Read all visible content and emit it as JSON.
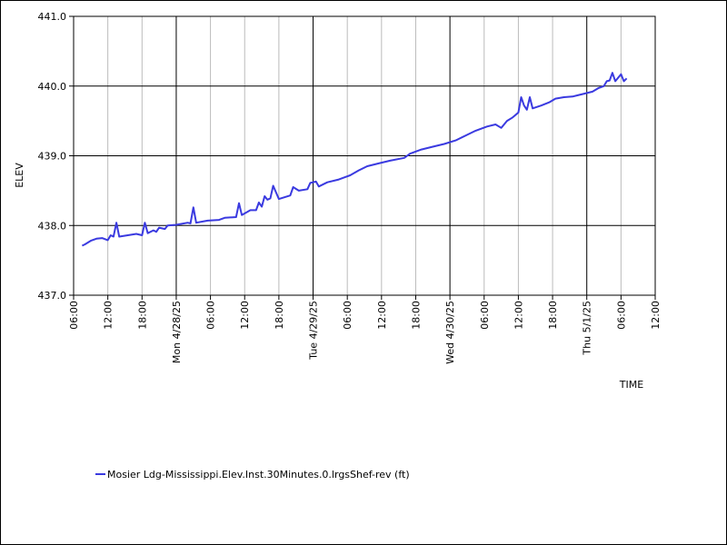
{
  "chart_data": {
    "type": "line",
    "y_label": "ELEV",
    "x_label": "TIME",
    "xlim": [
      "2025-04-27T06:00",
      "2025-05-01T12:00"
    ],
    "ylim": [
      437.0,
      441.0
    ],
    "yticks": [
      {
        "value": 437,
        "label": "437.0"
      },
      {
        "value": 438,
        "label": "438.0"
      },
      {
        "value": 439,
        "label": "439.0"
      },
      {
        "value": 440,
        "label": "440.0"
      },
      {
        "value": 441,
        "label": "441.0"
      }
    ],
    "xticks": [
      {
        "value": "2025-04-27T06:00",
        "label": "06:00"
      },
      {
        "value": "2025-04-27T12:00",
        "label": "12:00"
      },
      {
        "value": "2025-04-27T18:00",
        "label": "18:00"
      },
      {
        "value": "2025-04-28T00:00",
        "label": "Mon 4/28/25"
      },
      {
        "value": "2025-04-28T06:00",
        "label": "06:00"
      },
      {
        "value": "2025-04-28T12:00",
        "label": "12:00"
      },
      {
        "value": "2025-04-28T18:00",
        "label": "18:00"
      },
      {
        "value": "2025-04-29T00:00",
        "label": "Tue 4/29/25"
      },
      {
        "value": "2025-04-29T06:00",
        "label": "06:00"
      },
      {
        "value": "2025-04-29T12:00",
        "label": "12:00"
      },
      {
        "value": "2025-04-29T18:00",
        "label": "18:00"
      },
      {
        "value": "2025-04-30T00:00",
        "label": "Wed 4/30/25"
      },
      {
        "value": "2025-04-30T06:00",
        "label": "06:00"
      },
      {
        "value": "2025-04-30T12:00",
        "label": "12:00"
      },
      {
        "value": "2025-04-30T18:00",
        "label": "18:00"
      },
      {
        "value": "2025-05-01T00:00",
        "label": "Thu 5/1/25"
      },
      {
        "value": "2025-05-01T06:00",
        "label": "06:00"
      },
      {
        "value": "2025-05-01T12:00",
        "label": "12:00"
      }
    ],
    "grid": true,
    "legend": "bottom",
    "x": [
      "2025-04-27T07:30",
      "2025-04-27T08:00",
      "2025-04-27T09:00",
      "2025-04-27T10:00",
      "2025-04-27T11:00",
      "2025-04-27T12:00",
      "2025-04-27T12:30",
      "2025-04-27T13:00",
      "2025-04-27T13:30",
      "2025-04-27T14:00",
      "2025-04-27T15:30",
      "2025-04-27T17:00",
      "2025-04-27T18:00",
      "2025-04-27T18:30",
      "2025-04-27T19:00",
      "2025-04-27T20:00",
      "2025-04-27T20:30",
      "2025-04-27T21:00",
      "2025-04-27T22:00",
      "2025-04-27T22:30",
      "2025-04-28T00:00",
      "2025-04-28T02:00",
      "2025-04-28T02:30",
      "2025-04-28T03:00",
      "2025-04-28T03:30",
      "2025-04-28T05:30",
      "2025-04-28T07:30",
      "2025-04-28T08:30",
      "2025-04-28T10:30",
      "2025-04-28T11:00",
      "2025-04-28T11:30",
      "2025-04-28T13:00",
      "2025-04-28T14:00",
      "2025-04-28T14:30",
      "2025-04-28T15:00",
      "2025-04-28T15:30",
      "2025-04-28T16:00",
      "2025-04-28T16:30",
      "2025-04-28T17:00",
      "2025-04-28T18:00",
      "2025-04-28T20:00",
      "2025-04-28T20:30",
      "2025-04-28T21:30",
      "2025-04-28T23:00",
      "2025-04-28T23:30",
      "2025-04-29T00:30",
      "2025-04-29T01:00",
      "2025-04-29T02:30",
      "2025-04-29T04:30",
      "2025-04-29T06:30",
      "2025-04-29T08:00",
      "2025-04-29T09:30",
      "2025-04-29T11:30",
      "2025-04-29T13:30",
      "2025-04-29T16:00",
      "2025-04-29T17:00",
      "2025-04-29T19:00",
      "2025-04-29T21:00",
      "2025-04-29T23:00",
      "2025-04-30T01:00",
      "2025-04-30T03:00",
      "2025-04-30T04:30",
      "2025-04-30T06:30",
      "2025-04-30T08:00",
      "2025-04-30T09:00",
      "2025-04-30T10:00",
      "2025-04-30T11:00",
      "2025-04-30T12:00",
      "2025-04-30T12:30",
      "2025-04-30T13:00",
      "2025-04-30T13:30",
      "2025-04-30T14:00",
      "2025-04-30T14:30",
      "2025-04-30T16:00",
      "2025-04-30T17:30",
      "2025-04-30T18:30",
      "2025-04-30T20:00",
      "2025-04-30T21:30",
      "2025-04-30T23:00",
      "2025-05-01T01:00",
      "2025-05-01T02:00",
      "2025-05-01T03:00",
      "2025-05-01T03:30",
      "2025-05-01T04:00",
      "2025-05-01T04:30",
      "2025-05-01T05:00",
      "2025-05-01T06:00",
      "2025-05-01T06:30",
      "2025-05-01T07:00"
    ],
    "series": [
      {
        "name": "Mosier Ldg-Mississippi.Elev.Inst.30Minutes.0.lrgsShef-rev (ft)",
        "color": "#3a3ae0",
        "values": [
          437.71,
          437.73,
          437.78,
          437.81,
          437.82,
          437.79,
          437.86,
          437.84,
          438.04,
          437.84,
          437.86,
          437.88,
          437.86,
          438.04,
          437.89,
          437.93,
          437.91,
          437.97,
          437.95,
          438.0,
          438.01,
          438.04,
          438.03,
          438.26,
          438.04,
          438.07,
          438.08,
          438.11,
          438.12,
          438.32,
          438.15,
          438.22,
          438.22,
          438.33,
          438.27,
          438.42,
          438.37,
          438.39,
          438.57,
          438.38,
          438.43,
          438.55,
          438.5,
          438.52,
          438.61,
          438.63,
          438.56,
          438.62,
          438.66,
          438.72,
          438.79,
          438.85,
          438.89,
          438.93,
          438.97,
          439.03,
          439.09,
          439.13,
          439.17,
          439.22,
          439.3,
          439.36,
          439.42,
          439.45,
          439.4,
          439.5,
          439.55,
          439.62,
          439.84,
          439.72,
          439.66,
          439.84,
          439.68,
          439.72,
          439.77,
          439.82,
          439.84,
          439.85,
          439.88,
          439.92,
          439.97,
          440.0,
          440.07,
          440.08,
          440.19,
          440.07,
          440.17,
          440.07,
          440.11
        ]
      }
    ]
  }
}
